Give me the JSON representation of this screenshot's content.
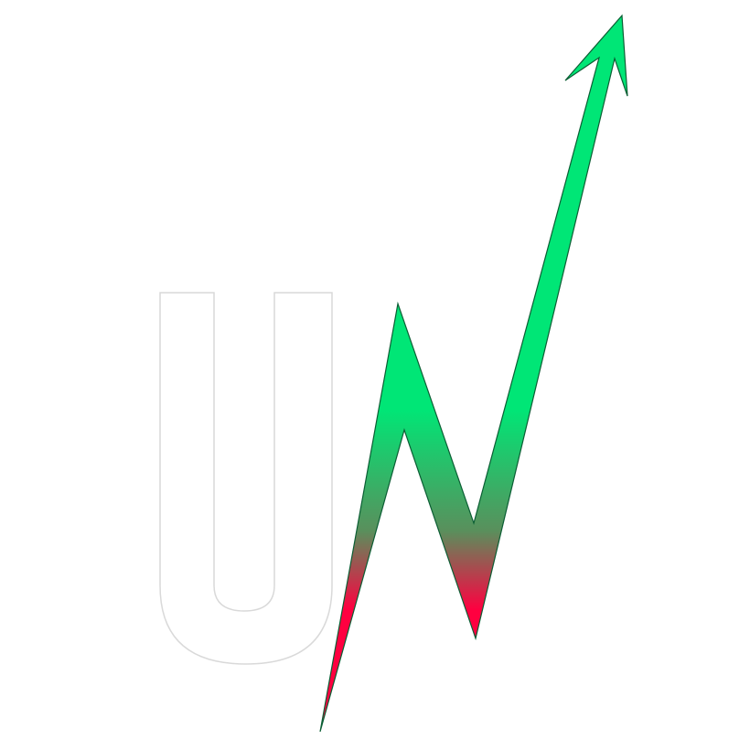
{
  "logo": {
    "text": "UN",
    "letter_outline_color": "#d9d9d9",
    "letter_fill_color": "#ffffff",
    "arrow_gradient": {
      "top_color": "#00e676",
      "mid_color": "#5a8f5c",
      "bottom_color": "#ff0040"
    },
    "arrow_outline_color": "#0b5e34"
  }
}
